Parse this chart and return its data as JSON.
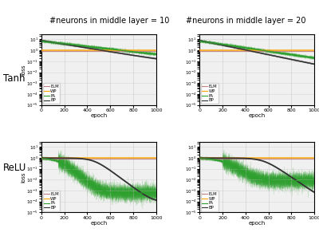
{
  "col_titles": [
    "#neurons in middle layer = 10",
    "#neurons in middle layer = 20"
  ],
  "row_labels": [
    "Tanh",
    "ReLU"
  ],
  "legend_labels": [
    "ELM",
    "WP",
    "FA",
    "BP"
  ],
  "xlim": [
    0,
    1000
  ],
  "ylim": [
    1e-05,
    30
  ],
  "xlabel": "epoch",
  "ylabel": "loss",
  "elm_color": "#c08080",
  "wp_color": "#ffa500",
  "fa_color": "#2ca02c",
  "bp_color": "#333333",
  "background_color": "#f0f0f0",
  "n_epochs": 1000,
  "tanh_n10": {
    "bp_tau": 250,
    "bp_start": 8,
    "bp_end": 0.025,
    "fa_tau": 350,
    "fa_start": 7,
    "fa_end": 0.04,
    "elm_val": 0.9,
    "wp_val": 1.0
  },
  "tanh_n20": {
    "bp_tau": 200,
    "bp_start": 8,
    "bp_end": 0.0008,
    "fa_tau": 280,
    "fa_start": 7,
    "fa_end": 0.002,
    "elm_val": 0.9,
    "wp_val": 1.0
  },
  "relu_n10": {
    "bp_drop": 460,
    "bp_slope": 55,
    "bp_floor": 8e-05,
    "fa_drop": 150,
    "fa_slope": 50,
    "fa_floor": 0.0006,
    "elm_val": 0.9,
    "wp_val": 1.0
  },
  "relu_n20": {
    "bp_drop": 560,
    "bp_slope": 60,
    "bp_floor": 8e-05,
    "fa_drop": 200,
    "fa_slope": 60,
    "fa_floor": 0.008,
    "elm_val": 0.9,
    "wp_val": 1.0
  }
}
